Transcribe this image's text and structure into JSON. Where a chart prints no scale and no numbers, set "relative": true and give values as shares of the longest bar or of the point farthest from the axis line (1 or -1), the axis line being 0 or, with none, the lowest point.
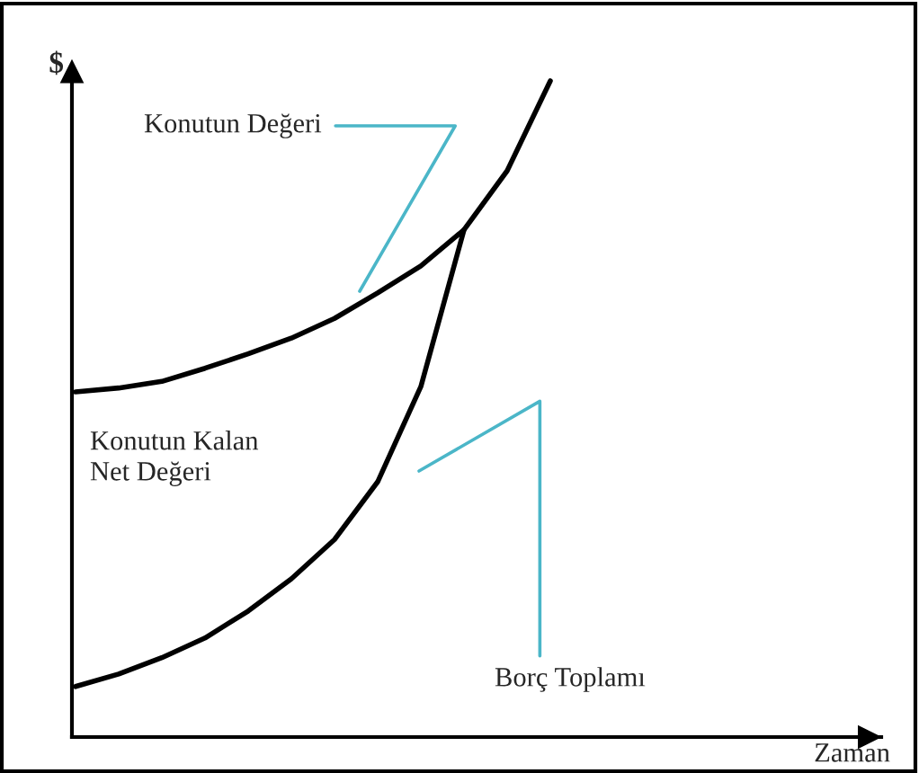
{
  "chart_data": {
    "type": "line",
    "relative": true,
    "ylabel": "$",
    "categories": [
      null,
      null,
      null,
      null,
      null,
      null,
      null,
      null,
      null,
      null,
      null,
      null
    ],
    "series": [
      {
        "color": "#000000",
        "values": [
          0.526,
          0.532,
          0.542,
          0.562,
          0.584,
          0.608,
          0.638,
          0.677,
          0.718,
          0.773,
          0.863,
          1
        ]
      },
      {
        "color": "#000000",
        "values": [
          0.077,
          0.096,
          0.121,
          0.151,
          0.192,
          0.241,
          0.301,
          0.389,
          0.534,
          0.773,
          null,
          null
        ]
      }
    ],
    "annotations": [
      "Konutun Değeri",
      "Konutun Kalan Net Değeri",
      "Borç Toplamı",
      "Zaman"
    ],
    "legend": false,
    "marker": "none",
    "line_style": "solid"
  }
}
